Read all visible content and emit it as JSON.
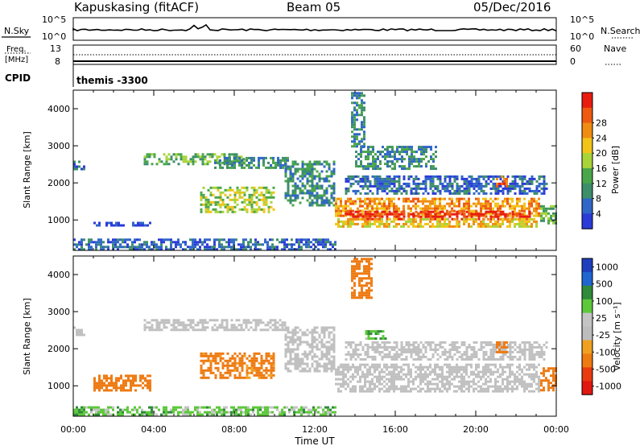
{
  "header": {
    "station": "Kapuskasing (fitACF)",
    "beam": "Beam 05",
    "date": "05/Dec/2016"
  },
  "nsky_panel": {
    "left_label": "N.Sky",
    "right_label": "N.Search",
    "right_label_style": "dotted",
    "left_ticks": [
      "10^5",
      "10^0"
    ],
    "right_ticks": [
      "10^5",
      "10^0"
    ]
  },
  "freq_panel": {
    "left_label_line1": "Freq.",
    "left_label_line2": "[MHz]",
    "right_label": "Nave",
    "right_label_style": "dotted",
    "left_ticks": [
      "13",
      "8"
    ],
    "right_ticks": [
      "60",
      "0"
    ]
  },
  "cpid_panel": {
    "label": "CPID",
    "value": "themis -3300"
  },
  "colors": {
    "power_scale": [
      "#2a3bd8",
      "#2f66c8",
      "#3d8e6a",
      "#4aa64a",
      "#a8d43a",
      "#f2c418",
      "#f08c12",
      "#ee5a10",
      "#e81d10"
    ],
    "velocity_scale": [
      "#1e3fbd",
      "#1f66d0",
      "#2f8a3a",
      "#5cc83a",
      "#c4c4c4",
      "#bdbdbd",
      "#f0a020",
      "#ee7a12",
      "#ea3a10",
      "#e01810"
    ],
    "ground_scatter_gray": "#c0c0c0"
  },
  "chart_data": [
    {
      "type": "heatmap",
      "panel": "power",
      "ylabel": "Slant Range [km]",
      "xlabel": "Time UT",
      "x_ticks": [
        "00:00",
        "04:00",
        "08:00",
        "12:00",
        "16:00",
        "20:00",
        "00:00"
      ],
      "x_range_hours": [
        0,
        24
      ],
      "y_ticks": [
        1000,
        2000,
        3000,
        4000
      ],
      "ylim": [
        180,
        4500
      ],
      "colorbar": {
        "label": "Power [dB]",
        "ticks": [
          4,
          8,
          12,
          16,
          20,
          24,
          28
        ]
      },
      "regions": [
        {
          "t0": 0.0,
          "t1": 0.5,
          "r0": 2400,
          "r1": 2600,
          "level": 1
        },
        {
          "t0": 1.0,
          "t1": 3.8,
          "r0": 850,
          "r1": 950,
          "level": 0
        },
        {
          "t0": 3.5,
          "t1": 8.5,
          "r0": 2500,
          "r1": 2800,
          "level": 3
        },
        {
          "t0": 7.0,
          "t1": 10.7,
          "r0": 2400,
          "r1": 2700,
          "level": 2
        },
        {
          "t0": 10.5,
          "t1": 13.0,
          "r0": 1400,
          "r1": 2600,
          "level": 2
        },
        {
          "t0": 6.3,
          "t1": 10.0,
          "r0": 1200,
          "r1": 1900,
          "level": 4
        },
        {
          "t0": 13.0,
          "t1": 23.2,
          "r0": 1100,
          "r1": 1600,
          "level": 6
        },
        {
          "t0": 13.5,
          "t1": 22.7,
          "r0": 1050,
          "r1": 1250,
          "level": 8
        },
        {
          "t0": 13.0,
          "t1": 23.0,
          "r0": 850,
          "r1": 1050,
          "level": 5
        },
        {
          "t0": 13.5,
          "t1": 23.5,
          "r0": 1700,
          "r1": 2200,
          "level": 1
        },
        {
          "t0": 14.0,
          "t1": 18.0,
          "r0": 2400,
          "r1": 3000,
          "level": 2
        },
        {
          "t0": 21.0,
          "t1": 21.5,
          "r0": 1900,
          "r1": 2200,
          "level": 7
        },
        {
          "t0": 23.2,
          "t1": 24.0,
          "r0": 900,
          "r1": 1400,
          "level": 3
        },
        {
          "t0": 0.0,
          "t1": 13.0,
          "r0": 200,
          "r1": 500,
          "level": 1
        },
        {
          "t0": 13.8,
          "t1": 14.5,
          "r0": 3000,
          "r1": 4450,
          "level": 2
        }
      ]
    },
    {
      "type": "heatmap",
      "panel": "velocity",
      "ylabel": "Slant Range [km]",
      "xlabel": "Time UT",
      "x_ticks": [
        "00:00",
        "04:00",
        "08:00",
        "12:00",
        "16:00",
        "20:00",
        "00:00"
      ],
      "x_range_hours": [
        0,
        24
      ],
      "y_ticks": [
        1000,
        2000,
        3000,
        4000
      ],
      "ylim": [
        180,
        4500
      ],
      "colorbar": {
        "label": "Velocity [m s⁻¹]",
        "ticks": [
          1000,
          500,
          100,
          25,
          -25,
          -100,
          -500,
          -1000
        ]
      },
      "regions": [
        {
          "t0": 0.0,
          "t1": 0.5,
          "r0": 2400,
          "r1": 2600,
          "vel": "gs"
        },
        {
          "t0": 3.5,
          "t1": 10.7,
          "r0": 2500,
          "r1": 2800,
          "vel": "gs"
        },
        {
          "t0": 10.5,
          "t1": 13.0,
          "r0": 1400,
          "r1": 2600,
          "vel": "gs"
        },
        {
          "t0": 13.0,
          "t1": 23.2,
          "r0": 850,
          "r1": 1600,
          "vel": "gs"
        },
        {
          "t0": 13.5,
          "t1": 23.5,
          "r0": 1700,
          "r1": 2200,
          "vel": "gs"
        },
        {
          "t0": 6.3,
          "t1": 10.0,
          "r0": 1200,
          "r1": 1900,
          "vel": -150
        },
        {
          "t0": 1.0,
          "t1": 3.8,
          "r0": 900,
          "r1": 1300,
          "vel": -200
        },
        {
          "t0": 14.5,
          "t1": 15.5,
          "r0": 2300,
          "r1": 2500,
          "vel": 80
        },
        {
          "t0": 21.0,
          "t1": 21.6,
          "r0": 1900,
          "r1": 2200,
          "vel": -300
        },
        {
          "t0": 23.2,
          "t1": 24.0,
          "r0": 900,
          "r1": 1500,
          "vel": -250
        },
        {
          "t0": 0.0,
          "t1": 13.0,
          "r0": 200,
          "r1": 450,
          "vel": 60
        },
        {
          "t0": 13.8,
          "t1": 14.8,
          "r0": 3400,
          "r1": 4450,
          "vel": -200
        }
      ]
    }
  ]
}
